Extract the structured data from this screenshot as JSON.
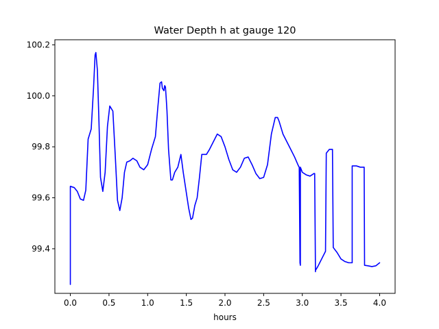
{
  "chart_data": {
    "type": "line",
    "title": "Water Depth h at gauge 120",
    "xlabel": "hours",
    "ylabel": "",
    "xlim": [
      -0.2,
      4.2
    ],
    "ylim": [
      99.225,
      100.22
    ],
    "x_ticks": [
      0.0,
      0.5,
      1.0,
      1.5,
      2.0,
      2.5,
      3.0,
      3.5,
      4.0
    ],
    "x_tick_labels": [
      "0.0",
      "0.5",
      "1.0",
      "1.5",
      "2.0",
      "2.5",
      "3.0",
      "3.5",
      "4.0"
    ],
    "y_ticks": [
      99.4,
      99.6,
      99.8,
      100.0,
      100.2
    ],
    "y_tick_labels": [
      "99.4",
      "99.6",
      "99.8",
      "100.0",
      "100.2"
    ],
    "grid": false,
    "series": [
      {
        "color": "#0000ff",
        "x": [
          0.0,
          0.0,
          0.05,
          0.09,
          0.13,
          0.17,
          0.2,
          0.23,
          0.27,
          0.3,
          0.32,
          0.33,
          0.35,
          0.37,
          0.39,
          0.42,
          0.45,
          0.48,
          0.51,
          0.55,
          0.58,
          0.61,
          0.64,
          0.67,
          0.7,
          0.73,
          0.77,
          0.81,
          0.86,
          0.9,
          0.95,
          1.0,
          1.05,
          1.1,
          1.13,
          1.16,
          1.18,
          1.19,
          1.21,
          1.22,
          1.23,
          1.24,
          1.25,
          1.27,
          1.3,
          1.32,
          1.35,
          1.39,
          1.43,
          1.46,
          1.5,
          1.53,
          1.56,
          1.58,
          1.61,
          1.64,
          1.67,
          1.7,
          1.73,
          1.76,
          1.8,
          1.85,
          1.9,
          1.95,
          2.0,
          2.05,
          2.1,
          2.15,
          2.2,
          2.25,
          2.3,
          2.35,
          2.4,
          2.45,
          2.5,
          2.55,
          2.6,
          2.65,
          2.68,
          2.7,
          2.75,
          2.8,
          2.85,
          2.9,
          2.95,
          2.96,
          2.97,
          2.975,
          2.975,
          3.0,
          3.05,
          3.1,
          3.15,
          3.16,
          3.17,
          3.17,
          3.2,
          3.25,
          3.3,
          3.31,
          3.35,
          3.38,
          3.39,
          3.4,
          3.45,
          3.5,
          3.55,
          3.6,
          3.645,
          3.645,
          3.7,
          3.75,
          3.8,
          3.805,
          3.85,
          3.9,
          3.95,
          4.0
        ],
        "y": [
          99.26,
          99.645,
          99.64,
          99.625,
          99.595,
          99.59,
          99.63,
          99.83,
          99.87,
          100.03,
          100.16,
          100.17,
          100.1,
          99.9,
          99.68,
          99.625,
          99.7,
          99.88,
          99.96,
          99.94,
          99.77,
          99.59,
          99.55,
          99.6,
          99.7,
          99.74,
          99.745,
          99.755,
          99.745,
          99.72,
          99.71,
          99.73,
          99.79,
          99.84,
          99.95,
          100.05,
          100.055,
          100.03,
          100.02,
          100.04,
          100.035,
          99.99,
          99.94,
          99.79,
          99.67,
          99.67,
          99.7,
          99.72,
          99.77,
          99.7,
          99.62,
          99.56,
          99.515,
          99.52,
          99.57,
          99.6,
          99.68,
          99.77,
          99.77,
          99.77,
          99.79,
          99.82,
          99.85,
          99.84,
          99.8,
          99.75,
          99.71,
          99.7,
          99.72,
          99.755,
          99.76,
          99.73,
          99.695,
          99.675,
          99.68,
          99.73,
          99.85,
          99.915,
          99.915,
          99.9,
          99.85,
          99.82,
          99.79,
          99.76,
          99.725,
          99.72,
          99.345,
          99.335,
          99.72,
          99.7,
          99.69,
          99.685,
          99.695,
          99.695,
          99.31,
          99.315,
          99.33,
          99.36,
          99.39,
          99.775,
          99.79,
          99.79,
          99.79,
          99.405,
          99.385,
          99.36,
          99.35,
          99.345,
          99.345,
          99.725,
          99.725,
          99.72,
          99.72,
          99.335,
          99.333,
          99.33,
          99.333,
          99.345
        ]
      }
    ]
  }
}
